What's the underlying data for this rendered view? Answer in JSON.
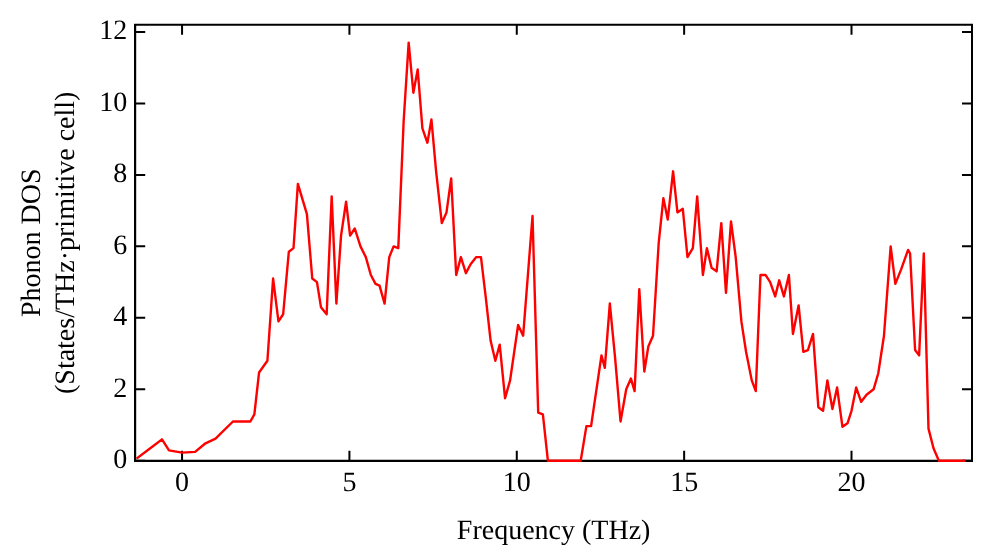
{
  "chart_data": {
    "type": "line",
    "xlabel": "Frequency (THz)",
    "ylabel": "Phonon DOS\n(States/THz·primitive cell)",
    "xlim": [
      -1.4,
      23.6
    ],
    "ylim": [
      0,
      12.2
    ],
    "xticks": [
      0,
      5,
      10,
      15,
      20
    ],
    "yticks": [
      0,
      2,
      4,
      6,
      8,
      10,
      12
    ],
    "grid": false,
    "legend": false,
    "marker": "none",
    "line_style": "solid",
    "series": [
      {
        "color": "#ff0000",
        "x": [
          -1.36,
          -0.95,
          -0.6,
          -0.39,
          0,
          0.39,
          0.7,
          1.0,
          1.52,
          2.04,
          2.16,
          2.3,
          2.55,
          2.72,
          2.88,
          3.02,
          3.19,
          3.33,
          3.46,
          3.73,
          3.89,
          4.03,
          4.15,
          4.32,
          4.47,
          4.61,
          4.75,
          4.9,
          5.02,
          5.16,
          5.33,
          5.49,
          5.64,
          5.78,
          5.9,
          6.05,
          6.19,
          6.32,
          6.46,
          6.62,
          6.77,
          6.91,
          7.04,
          7.18,
          7.33,
          7.45,
          7.59,
          7.76,
          7.9,
          8.04,
          8.19,
          8.33,
          8.48,
          8.62,
          8.79,
          8.93,
          9.07,
          9.22,
          9.36,
          9.49,
          9.65,
          9.8,
          10.04,
          10.19,
          10.47,
          10.64,
          10.78,
          10.93,
          11.91,
          12.08,
          12.22,
          12.53,
          12.63,
          12.78,
          12.94,
          13.1,
          13.27,
          13.41,
          13.52,
          13.66,
          13.81,
          13.93,
          14.07,
          14.24,
          14.38,
          14.51,
          14.67,
          14.8,
          14.96,
          15.1,
          15.26,
          15.39,
          15.56,
          15.68,
          15.82,
          15.97,
          16.11,
          16.25,
          16.4,
          16.54,
          16.71,
          16.85,
          17.02,
          17.14,
          17.28,
          17.43,
          17.57,
          17.72,
          17.84,
          17.98,
          18.13,
          18.25,
          18.42,
          18.56,
          18.7,
          18.85,
          19.01,
          19.15,
          19.28,
          19.43,
          19.57,
          19.73,
          19.88,
          20.0,
          20.14,
          20.29,
          20.45,
          20.66,
          20.8,
          20.97,
          21.17,
          21.31,
          21.48,
          21.69,
          21.75,
          21.9,
          22.02,
          22.16,
          22.3,
          22.45,
          22.61,
          23.4
        ],
        "values": [
          0.06,
          0.35,
          0.6,
          0.29,
          0.23,
          0.25,
          0.49,
          0.62,
          1.1,
          1.1,
          1.3,
          2.47,
          2.8,
          5.1,
          3.9,
          4.1,
          5.85,
          5.95,
          7.75,
          6.9,
          5.1,
          5.0,
          4.3,
          4.1,
          7.4,
          4.4,
          6.3,
          7.25,
          6.3,
          6.5,
          6.0,
          5.7,
          5.2,
          4.95,
          4.9,
          4.4,
          5.7,
          6.0,
          5.95,
          9.5,
          11.7,
          10.3,
          10.95,
          9.3,
          8.9,
          9.55,
          8.1,
          6.65,
          6.95,
          7.9,
          5.2,
          5.7,
          5.25,
          5.5,
          5.7,
          5.7,
          4.6,
          3.35,
          2.8,
          3.25,
          1.75,
          2.25,
          3.8,
          3.5,
          6.85,
          1.35,
          1.3,
          0,
          0,
          0.97,
          0.97,
          2.95,
          2.6,
          4.4,
          2.85,
          1.1,
          2.0,
          2.3,
          1.95,
          4.8,
          2.5,
          3.2,
          3.5,
          6.1,
          7.35,
          6.75,
          8.1,
          6.95,
          7.05,
          5.7,
          5.95,
          7.4,
          5.2,
          5.95,
          5.4,
          5.3,
          6.65,
          4.7,
          6.7,
          5.7,
          3.9,
          3.05,
          2.25,
          1.95,
          5.2,
          5.2,
          5.0,
          4.6,
          5.05,
          4.6,
          5.2,
          3.55,
          4.35,
          3.05,
          3.1,
          3.55,
          1.5,
          1.4,
          2.25,
          1.45,
          2.05,
          0.95,
          1.05,
          1.4,
          2.05,
          1.65,
          1.85,
          2.0,
          2.45,
          3.5,
          6.0,
          4.95,
          5.35,
          5.9,
          5.8,
          3.1,
          2.95,
          5.8,
          0.9,
          0.35,
          0,
          0
        ]
      }
    ]
  }
}
